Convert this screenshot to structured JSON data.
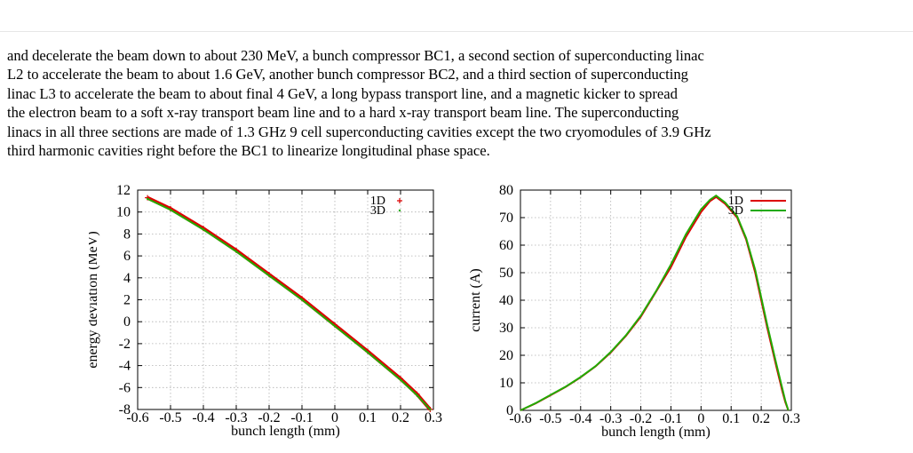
{
  "paragraph": {
    "lines": [
      "and decelerate the beam down to about 230 MeV, a bunch compressor BC1, a second section of superconducting linac",
      "L2 to accelerate the beam to about 1.6 GeV, another bunch compressor BC2, and a third section of superconducting",
      "linac L3 to accelerate the beam to about final 4 GeV, a long bypass transport line, and a magnetic kicker to spread",
      "the electron beam to a soft x-ray transport beam line and to a hard x-ray transport beam line. The superconducting",
      "linacs in all three sections are made of 1.3 GHz 9 cell superconducting cavities except the two cryomodules of 3.9 GHz",
      "third harmonic cavities right before the BC1 to linearize longitudinal phase space."
    ]
  },
  "colors": {
    "series_1d": "#dd0000",
    "series_3d": "#22aa00",
    "grid": "#b0b0b0"
  },
  "chart_data": [
    {
      "type": "scatter",
      "xlabel": "bunch length (mm)",
      "ylabel": "energy deviation (MeV)",
      "xlim": [
        -0.6,
        0.3
      ],
      "ylim": [
        -8,
        12
      ],
      "xticks": [
        -0.6,
        -0.5,
        -0.4,
        -0.3,
        -0.2,
        -0.1,
        0,
        0.1,
        0.2,
        0.3
      ],
      "yticks": [
        -8,
        -6,
        -4,
        -2,
        0,
        2,
        4,
        6,
        8,
        10,
        12
      ],
      "xtick_labels": [
        "-0.6",
        "-0.5",
        "-0.4",
        "-0.3",
        "-0.2",
        "-0.1",
        "0",
        "0.1",
        "0.2",
        "0.3"
      ],
      "ytick_labels": [
        "-8",
        "-6",
        "-4",
        "-2",
        "0",
        "2",
        "4",
        "6",
        "8",
        "10",
        "12"
      ],
      "grid": true,
      "legend": "top-right",
      "series": [
        {
          "name": "1D",
          "marker": "+",
          "x": [
            -0.57,
            -0.5,
            -0.4,
            -0.3,
            -0.2,
            -0.1,
            0,
            0.1,
            0.2,
            0.25,
            0.29
          ],
          "y": [
            11.3,
            10.3,
            8.5,
            6.5,
            4.3,
            2.1,
            -0.3,
            -2.7,
            -5.2,
            -6.6,
            -8.0
          ]
        },
        {
          "name": "3D",
          "marker": "dot",
          "x": [
            -0.57,
            -0.5,
            -0.4,
            -0.3,
            -0.2,
            -0.1,
            0,
            0.1,
            0.2,
            0.25,
            0.29
          ],
          "y": [
            11.2,
            10.2,
            8.4,
            6.4,
            4.2,
            2.0,
            -0.4,
            -2.8,
            -5.3,
            -6.7,
            -8.0
          ]
        }
      ]
    },
    {
      "type": "line",
      "xlabel": "bunch length (mm)",
      "ylabel": "current (A)",
      "xlim": [
        -0.6,
        0.3
      ],
      "ylim": [
        0,
        80
      ],
      "xticks": [
        -0.6,
        -0.5,
        -0.4,
        -0.3,
        -0.2,
        -0.1,
        0,
        0.1,
        0.2,
        0.3
      ],
      "yticks": [
        0,
        10,
        20,
        30,
        40,
        50,
        60,
        70,
        80
      ],
      "xtick_labels": [
        "-0.6",
        "-0.5",
        "-0.4",
        "-0.3",
        "-0.2",
        "-0.1",
        "0",
        "0.1",
        "0.2",
        "0.3"
      ],
      "ytick_labels": [
        "0",
        "10",
        "20",
        "30",
        "40",
        "50",
        "60",
        "70",
        "80"
      ],
      "grid": true,
      "legend": "top-right",
      "series": [
        {
          "name": "1D",
          "x": [
            -0.6,
            -0.55,
            -0.5,
            -0.45,
            -0.4,
            -0.35,
            -0.3,
            -0.25,
            -0.2,
            -0.15,
            -0.1,
            -0.05,
            0,
            0.03,
            0.05,
            0.08,
            0.12,
            0.15,
            0.18,
            0.2,
            0.22,
            0.25,
            0.27,
            0.28,
            0.29
          ],
          "y": [
            0,
            2.5,
            5.5,
            8.5,
            12,
            16,
            21,
            27,
            34,
            43,
            52,
            63,
            72,
            76,
            77.5,
            75,
            70,
            62,
            50,
            40,
            30,
            16,
            7,
            3,
            0
          ]
        },
        {
          "name": "3D",
          "x": [
            -0.6,
            -0.55,
            -0.5,
            -0.45,
            -0.4,
            -0.35,
            -0.3,
            -0.25,
            -0.2,
            -0.15,
            -0.1,
            -0.05,
            0,
            0.03,
            0.05,
            0.08,
            0.12,
            0.15,
            0.18,
            0.2,
            0.22,
            0.25,
            0.27,
            0.28,
            0.29
          ],
          "y": [
            0,
            2.6,
            5.6,
            8.6,
            12.1,
            16.1,
            21.2,
            27.2,
            34.4,
            43.2,
            53,
            64,
            73,
            76.5,
            78,
            75.5,
            70.5,
            62.5,
            51,
            41,
            31,
            17,
            8,
            3.5,
            0
          ]
        }
      ]
    }
  ]
}
